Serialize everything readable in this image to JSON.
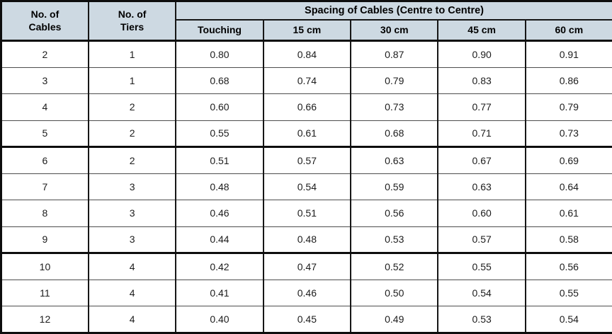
{
  "table": {
    "columns": {
      "cables": "No. of\nCables",
      "tiers": "No. of\nTiers",
      "spacing_group": "Spacing of Cables (Centre to Centre)",
      "spacing": [
        "Touching",
        "15 cm",
        "30 cm",
        "45 cm",
        "60 cm"
      ]
    },
    "rows": [
      {
        "cables": "2",
        "tiers": "1",
        "values": [
          "0.80",
          "0.84",
          "0.87",
          "0.90",
          "0.91"
        ]
      },
      {
        "cables": "3",
        "tiers": "1",
        "values": [
          "0.68",
          "0.74",
          "0.79",
          "0.83",
          "0.86"
        ]
      },
      {
        "cables": "4",
        "tiers": "2",
        "values": [
          "0.60",
          "0.66",
          "0.73",
          "0.77",
          "0.79"
        ]
      },
      {
        "cables": "5",
        "tiers": "2",
        "values": [
          "0.55",
          "0.61",
          "0.68",
          "0.71",
          "0.73"
        ]
      },
      {
        "cables": "6",
        "tiers": "2",
        "values": [
          "0.51",
          "0.57",
          "0.63",
          "0.67",
          "0.69"
        ]
      },
      {
        "cables": "7",
        "tiers": "3",
        "values": [
          "0.48",
          "0.54",
          "0.59",
          "0.63",
          "0.64"
        ]
      },
      {
        "cables": "8",
        "tiers": "3",
        "values": [
          "0.46",
          "0.51",
          "0.56",
          "0.60",
          "0.61"
        ]
      },
      {
        "cables": "9",
        "tiers": "3",
        "values": [
          "0.44",
          "0.48",
          "0.53",
          "0.57",
          "0.58"
        ]
      },
      {
        "cables": "10",
        "tiers": "4",
        "values": [
          "0.42",
          "0.47",
          "0.52",
          "0.55",
          "0.56"
        ]
      },
      {
        "cables": "11",
        "tiers": "4",
        "values": [
          "0.41",
          "0.46",
          "0.50",
          "0.54",
          "0.55"
        ]
      },
      {
        "cables": "12",
        "tiers": "4",
        "values": [
          "0.40",
          "0.45",
          "0.49",
          "0.53",
          "0.54"
        ]
      }
    ]
  },
  "colors": {
    "header_bg": "#cdd9e2",
    "border_dark": "#0d0d0d",
    "border_thin": "#4d4d4d",
    "body_bg": "#ffffff",
    "text": "#1c1c1c"
  }
}
